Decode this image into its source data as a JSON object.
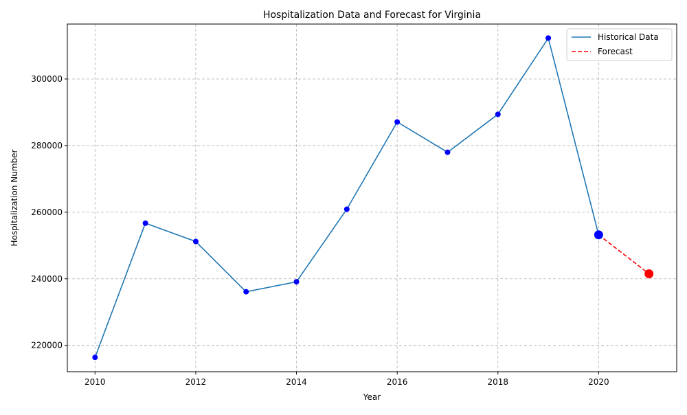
{
  "chart_data": {
    "type": "line",
    "title": "Hospitalization Data and Forecast for Virginia",
    "xlabel": "Year",
    "ylabel": "Hospitalization Number",
    "xlim": [
      2009.45,
      2021.55
    ],
    "ylim": [
      212100,
      316500
    ],
    "x_ticks": [
      2010,
      2012,
      2014,
      2016,
      2018,
      2020
    ],
    "y_ticks": [
      220000,
      240000,
      260000,
      280000,
      300000
    ],
    "grid": true,
    "legend_position": "top-right",
    "series": [
      {
        "name": "Historical Data",
        "style": "solid",
        "color": "#1f77b4",
        "marker_color": "#0000ff",
        "x": [
          2010,
          2011,
          2012,
          2013,
          2014,
          2015,
          2016,
          2017,
          2018,
          2019,
          2020
        ],
        "y": [
          216400,
          256700,
          251200,
          236100,
          239100,
          260900,
          287100,
          278000,
          289400,
          312300,
          253200
        ]
      },
      {
        "name": "Forecast",
        "style": "dashed",
        "color": "#ff0000",
        "marker_color": "#ff0000",
        "x": [
          2020,
          2021
        ],
        "y": [
          253200,
          241500
        ]
      }
    ]
  }
}
